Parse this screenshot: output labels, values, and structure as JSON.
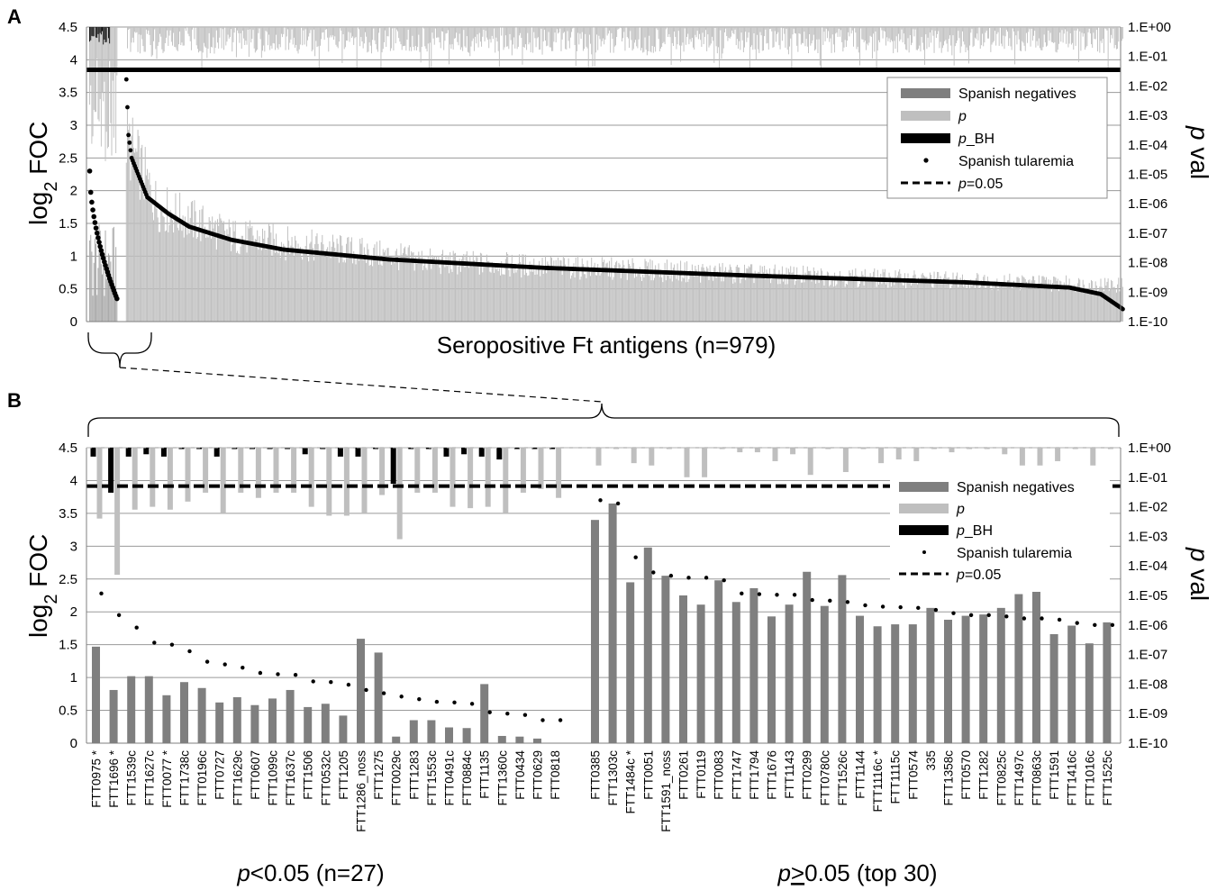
{
  "panel_a": {
    "label": "A",
    "ylabel_left_main": "log",
    "ylabel_left_sub": "2",
    "ylabel_left_tail": " FOC",
    "ylabel_right_italic": "p",
    "ylabel_right_tail": " val",
    "xlabel": "Seropositive Ft antigens (n=979)"
  },
  "panel_b": {
    "label": "B",
    "ylabel_left_main": "log",
    "ylabel_left_sub": "2",
    "ylabel_left_tail": " FOC",
    "ylabel_right_italic": "p",
    "ylabel_right_tail": " val",
    "group1_italic": "p",
    "group1_tail": "<0.05 (n=27)",
    "group2_italic": "p",
    "group2_geq": ">",
    "group2_tail": "0.05 (top 30)"
  },
  "legend": {
    "neg": "Spanish negatives",
    "p": "p",
    "pbh_italic": "p",
    "pbh_tail": "_BH",
    "tul": "Spanish tularemia",
    "p05_italic": "p",
    "p05_tail": "=0.05"
  },
  "colors": {
    "neg_bar": "#7f7f7f",
    "p_bar": "#bfbfbf",
    "pbh_bar": "#000000",
    "dot": "#000000",
    "grid": "#9a9a9a"
  },
  "left_ticks": [
    "0",
    "0.5",
    "1",
    "1.5",
    "2",
    "2.5",
    "3",
    "3.5",
    "4",
    "4.5"
  ],
  "right_ticks": [
    "1.E-10",
    "1.E-09",
    "1.E-08",
    "1.E-07",
    "1.E-06",
    "1.E-05",
    "1.E-04",
    "1.E-03",
    "1.E-02",
    "1.E-01",
    "1.E+00"
  ],
  "chart_data": [
    {
      "type": "bar",
      "title": "A",
      "n_antigens": 979,
      "n_significant": 27,
      "xlabel": "Seropositive Ft antigens (n=979)",
      "ylabel": "log2 FOC",
      "ylabel_right": "p val",
      "ylim": [
        0,
        4.5
      ],
      "ylim_right_log10": [
        -10,
        0
      ],
      "pBH_threshold_pval": 0.05,
      "sig_dot_logFOC_start": 2.3,
      "sig_dot_logFOC_end": 0.35,
      "nonsig_dot_logFOC_points": [
        [
          0,
          3.7
        ],
        [
          2,
          2.85
        ],
        [
          5,
          2.5
        ],
        [
          20,
          1.9
        ],
        [
          40,
          1.65
        ],
        [
          60,
          1.45
        ],
        [
          100,
          1.25
        ],
        [
          150,
          1.1
        ],
        [
          250,
          0.95
        ],
        [
          400,
          0.82
        ],
        [
          600,
          0.7
        ],
        [
          800,
          0.6
        ],
        [
          900,
          0.52
        ],
        [
          930,
          0.42
        ],
        [
          952,
          0.18
        ]
      ],
      "nonsig_bar_negatives_approx_logFOC": [
        [
          0,
          2.8
        ],
        [
          30,
          1.75
        ],
        [
          100,
          1.3
        ],
        [
          300,
          0.9
        ],
        [
          600,
          0.72
        ],
        [
          952,
          0.55
        ]
      ],
      "series": [
        {
          "name": "Spanish negatives"
        },
        {
          "name": "p"
        },
        {
          "name": "p_BH"
        },
        {
          "name": "Spanish tularemia"
        }
      ],
      "grid": true,
      "legend_position": "top-right"
    },
    {
      "type": "bar",
      "title": "B",
      "ylabel": "log2 FOC",
      "ylabel_right": "p val",
      "ylim": [
        0,
        4.5
      ],
      "ylim_right_log10": [
        -10,
        0
      ],
      "threshold_pval": 0.05,
      "grid": true,
      "legend_position": "right",
      "series": [
        {
          "name": "Spanish negatives"
        },
        {
          "name": "p"
        },
        {
          "name": "p_BH"
        },
        {
          "name": "Spanish tularemia"
        },
        {
          "name": "p=0.05"
        }
      ],
      "categories_sig": [
        "FTT0975 *",
        "FTT1696 *",
        "FTT1539c",
        "FTT1627c",
        "FTT0077 *",
        "FTT1738c",
        "FTT0196c",
        "FTT0727",
        "FTT1629c",
        "FTT0607",
        "FTT1099c",
        "FTT1637c",
        "FTT1506",
        "FTT0532c",
        "FTT1205",
        "FTT1286_noss",
        "FTT1275",
        "FTT0029c",
        "FTT1283",
        "FTT1553c",
        "FTT0491c",
        "FTT0884c",
        "FTT1135",
        "FTT1360c",
        "FTT0434",
        "FTT0629",
        "FTT0818"
      ],
      "sig_neg_logFOC": [
        1.47,
        0.81,
        1.02,
        1.02,
        0.73,
        0.93,
        0.84,
        0.62,
        0.7,
        0.58,
        0.68,
        0.81,
        0.55,
        0.6,
        0.42,
        1.59,
        1.38,
        0.1,
        0.35,
        0.35,
        0.24,
        0.23,
        0.9,
        0.11,
        0.1,
        0.07,
        0.0
      ],
      "sig_tul_logFOC": [
        2.28,
        1.95,
        1.76,
        1.53,
        1.5,
        1.4,
        1.24,
        1.2,
        1.15,
        1.07,
        1.05,
        1.04,
        0.94,
        0.93,
        0.89,
        0.81,
        0.76,
        0.71,
        0.67,
        0.63,
        0.62,
        0.6,
        0.47,
        0.45,
        0.43,
        0.35,
        0.35
      ],
      "sig_pval": [
        0.004,
        5e-05,
        0.008,
        0.01,
        0.008,
        0.015,
        0.03,
        0.006,
        0.03,
        0.02,
        0.03,
        0.03,
        0.01,
        0.005,
        0.005,
        0.006,
        0.025,
        0.0008,
        0.03,
        0.03,
        0.01,
        0.009,
        0.01,
        0.006,
        0.03,
        0.04,
        0.02
      ],
      "sig_pBH": [
        0.5,
        0.03,
        0.5,
        0.6,
        0.5,
        0.9,
        0.95,
        0.5,
        0.95,
        0.9,
        0.95,
        0.95,
        0.6,
        0.95,
        0.5,
        0.5,
        0.95,
        0.06,
        0.95,
        0.95,
        0.5,
        0.6,
        0.5,
        0.4,
        0.95,
        0.95,
        0.95
      ],
      "categories_nonsig": [
        "FTT0385",
        "FTT1303c",
        "FTT1484c *",
        "FTT0051",
        "FTT1591_noss",
        "FTT0261",
        "FTT0119",
        "FTT0083",
        "FTT1747",
        "FTT1794",
        "FTT1676",
        "FTT1143",
        "FTT0299",
        "FTT0780c",
        "FTT1526c",
        "FTT1144",
        "FTT1116c *",
        "FTT1115c",
        "FTT0574",
        "335",
        "FTT1358c",
        "FTT0570",
        "FTT1282",
        "FTT0825c",
        "FTT1497c",
        "FTT0863c",
        "FTT1591",
        "FTT1416c",
        "FTT1016c",
        "FTT1525c"
      ],
      "nonsig_neg_logFOC": [
        3.4,
        3.65,
        2.45,
        2.98,
        2.55,
        2.25,
        2.11,
        2.48,
        2.15,
        2.36,
        1.93,
        2.11,
        2.61,
        2.09,
        2.56,
        1.94,
        1.78,
        1.81,
        1.81,
        2.06,
        1.88,
        1.94,
        1.96,
        2.06,
        2.27,
        2.35,
        1.66,
        1.79,
        1.52,
        1.84
      ],
      "nonsig_tul_logFOC": [
        3.7,
        3.65,
        2.83,
        2.6,
        2.55,
        2.52,
        2.52,
        2.48,
        2.28,
        2.27,
        2.26,
        2.26,
        2.18,
        2.17,
        2.15,
        2.1,
        2.08,
        2.07,
        2.06,
        2.03,
        1.98,
        1.95,
        1.95,
        1.93,
        1.9,
        1.9,
        1.88,
        1.83,
        1.8,
        1.8
      ],
      "nonsig_pval": [
        0.25,
        0.9,
        0.3,
        0.25,
        0.9,
        0.1,
        0.1,
        0.9,
        0.7,
        0.7,
        0.35,
        0.6,
        0.12,
        0.9,
        0.15,
        0.9,
        0.3,
        0.4,
        0.35,
        0.9,
        0.7,
        0.9,
        0.9,
        0.6,
        0.25,
        0.25,
        0.35,
        0.9,
        0.25,
        0.9
      ]
    }
  ]
}
